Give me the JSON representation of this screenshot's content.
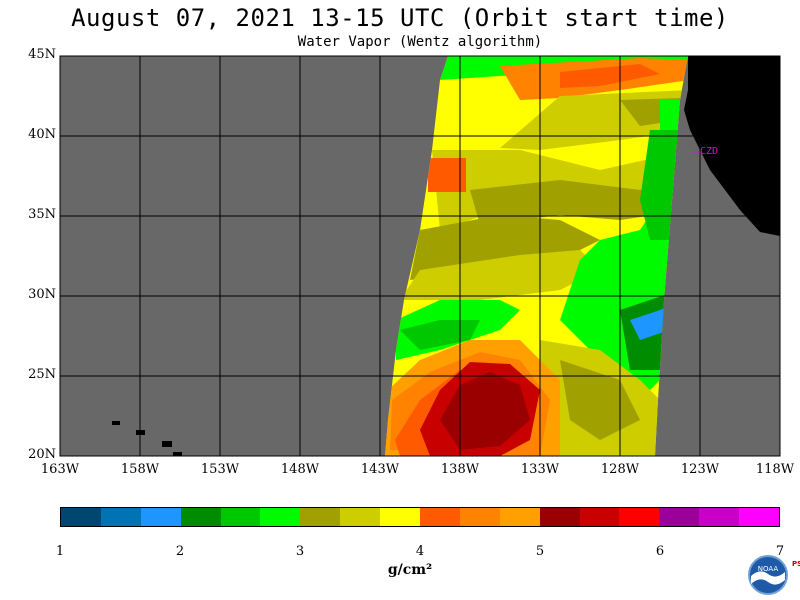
{
  "title": "August 07, 2021  13-15 UTC  (Orbit start time)",
  "subtitle": "Water Vapor (Wentz algorithm)",
  "lat_labels": [
    "45N",
    "40N",
    "35N",
    "30N",
    "25N",
    "20N"
  ],
  "lon_labels": [
    "163W",
    "158W",
    "153W",
    "148W",
    "143W",
    "138W",
    "133W",
    "128W",
    "123W",
    "118W"
  ],
  "station_label": "CZD",
  "colorbar": {
    "tick_labels": [
      "1",
      "2",
      "3",
      "4",
      "5",
      "6",
      "7"
    ],
    "units": "g/cm²",
    "colors": [
      "#00466e",
      "#0073b4",
      "#1e96ff",
      "#008c00",
      "#00c800",
      "#00fa00",
      "#a0a000",
      "#cdcd00",
      "#ffff00",
      "#ff5a00",
      "#ff8200",
      "#ffa000",
      "#9b0000",
      "#c80000",
      "#ff0000",
      "#9b009b",
      "#c800c8",
      "#ff00ff"
    ]
  },
  "map_colors": {
    "no_data": "#686868",
    "land": "#000000",
    "grid": "#000000"
  },
  "logo": {
    "name": "noaa-logo",
    "side_text": "PSL"
  }
}
